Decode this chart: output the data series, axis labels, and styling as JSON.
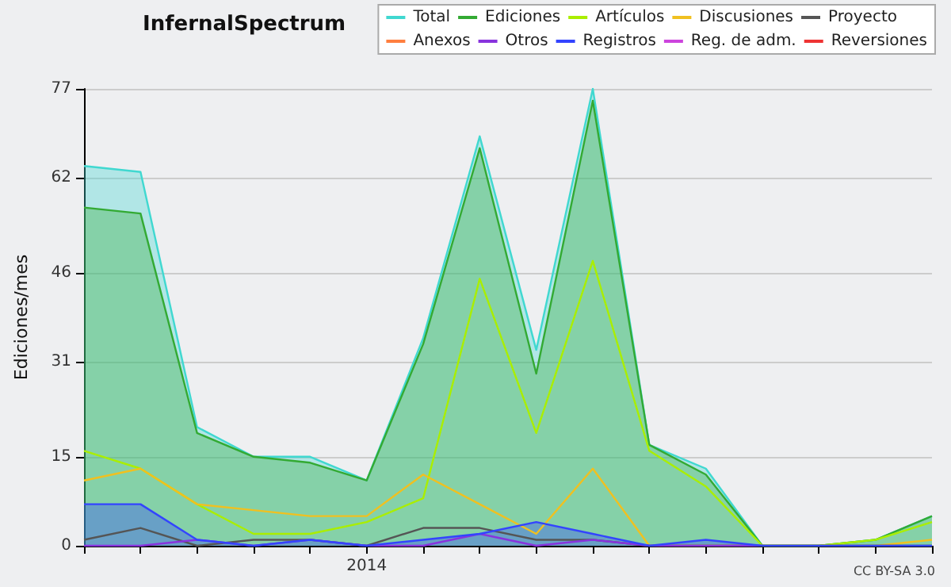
{
  "chart_data": {
    "type": "line",
    "title": "InfernalSpectrum",
    "ylabel": "Ediciones/mes",
    "categories": [
      null,
      null,
      null,
      null,
      null,
      "2014",
      null,
      null,
      null,
      null,
      null,
      null,
      null,
      null,
      null,
      null
    ],
    "series": [
      {
        "name": "Total",
        "type": "area",
        "color": "#40d8d0",
        "values": [
          64,
          63,
          20,
          15,
          15,
          11,
          35,
          69,
          33,
          77,
          17,
          13,
          0,
          0,
          1,
          5
        ]
      },
      {
        "name": "Ediciones",
        "type": "area",
        "color": "#33aa33",
        "values": [
          57,
          56,
          19,
          15,
          14,
          11,
          34,
          67,
          29,
          75,
          17,
          12,
          0,
          0,
          1,
          5
        ]
      },
      {
        "name": "Artículos",
        "color": "#aaee00",
        "values": [
          16,
          13,
          7,
          2,
          2,
          4,
          8,
          45,
          19,
          48,
          16,
          10,
          0,
          0,
          1,
          4
        ]
      },
      {
        "name": "Discusiones",
        "color": "#f0c020",
        "values": [
          11,
          13,
          7,
          6,
          5,
          5,
          12,
          7,
          2,
          13,
          0,
          0,
          0,
          0,
          0,
          1
        ]
      },
      {
        "name": "Proyecto",
        "color": "#555555",
        "values": [
          1,
          3,
          0,
          1,
          1,
          0,
          3,
          3,
          1,
          1,
          0,
          0,
          0,
          0,
          0,
          0
        ]
      },
      {
        "name": "Anexos",
        "color": "#ff7f3f",
        "values": [
          null,
          null,
          null,
          null,
          null,
          null,
          null,
          null,
          null,
          null,
          null,
          null,
          null,
          null,
          null,
          null
        ]
      },
      {
        "name": "Otros",
        "color": "#8833dd",
        "values": [
          0,
          0,
          1,
          0,
          1,
          0,
          0,
          2,
          0,
          1,
          0,
          0,
          0,
          null,
          null,
          null
        ]
      },
      {
        "name": "Registros",
        "type": "area",
        "color": "#3344ff",
        "values": [
          7,
          7,
          1,
          0,
          1,
          0,
          1,
          2,
          4,
          2,
          0,
          1,
          0,
          0,
          0,
          0
        ]
      },
      {
        "name": "Reg. de adm.",
        "color": "#cc44dd",
        "values": [
          null,
          null,
          null,
          null,
          null,
          null,
          null,
          null,
          null,
          null,
          null,
          null,
          null,
          null,
          null,
          null
        ]
      },
      {
        "name": "Reversiones",
        "color": "#ee3333",
        "values": [
          null,
          null,
          null,
          null,
          null,
          null,
          null,
          null,
          null,
          null,
          null,
          null,
          null,
          null,
          null,
          null
        ]
      }
    ],
    "ylim": [
      0,
      77
    ],
    "yticks": [
      0,
      15,
      31,
      46,
      62,
      77
    ],
    "grid": "y",
    "legend": "top right",
    "marker": "none",
    "line_style": "solid",
    "annotations": [
      "CC BY-SA 3.0"
    ]
  }
}
